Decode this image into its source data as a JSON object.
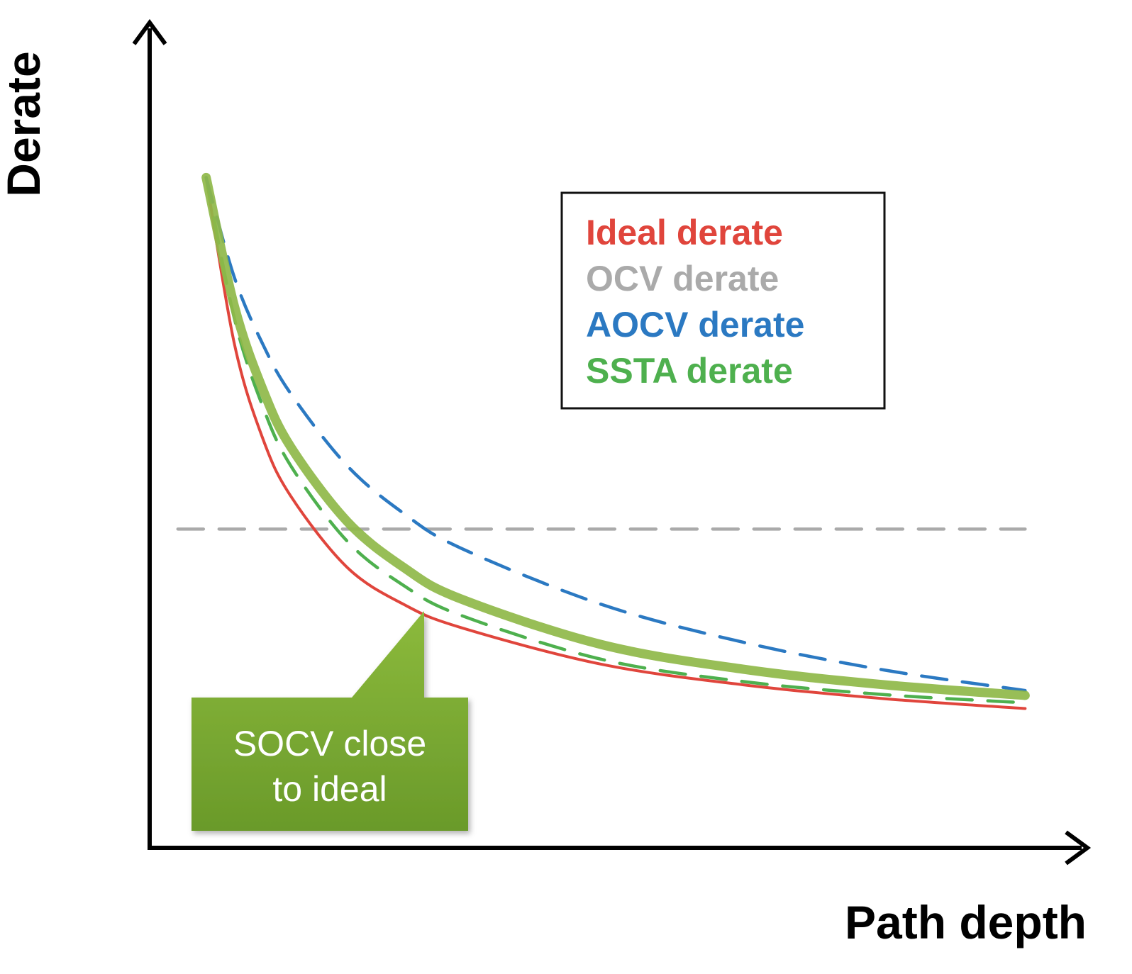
{
  "chart_data": {
    "type": "line",
    "xlabel": "Path depth",
    "ylabel": "Derate",
    "grid": false,
    "legend_position": "top-right",
    "series": [
      {
        "name": "Ideal derate",
        "style": "solid",
        "color": "#e0453c",
        "x": [
          1,
          2,
          3,
          4,
          6,
          8,
          10,
          15,
          20,
          25,
          30
        ],
        "y": [
          8.18,
          6.15,
          5.0,
          4.29,
          3.42,
          2.97,
          2.69,
          2.24,
          1.99,
          1.82,
          1.7
        ]
      },
      {
        "name": "OCV derate",
        "style": "dashed",
        "color": "#aaaaaa",
        "x": [
          0,
          30
        ],
        "y": [
          3.89,
          3.89
        ]
      },
      {
        "name": "AOCV derate",
        "style": "dashed",
        "color": "#2b79c2",
        "x": [
          1,
          2,
          3,
          4,
          6,
          8,
          10,
          15,
          20,
          25,
          30
        ],
        "y": [
          8.18,
          6.96,
          6.15,
          5.54,
          4.66,
          4.08,
          3.66,
          2.97,
          2.51,
          2.17,
          1.92
        ]
      },
      {
        "name": "SSTA derate",
        "style": "dashed",
        "color": "#4eb04e",
        "x": [
          1,
          2,
          3,
          4,
          6,
          8,
          10,
          15,
          20,
          25,
          30
        ],
        "y": [
          8.18,
          6.46,
          5.39,
          4.66,
          3.74,
          3.2,
          2.84,
          2.3,
          2.03,
          1.87,
          1.77
        ]
      },
      {
        "name": "SOCV",
        "style": "solid-thick",
        "color": "#8fb849",
        "x": [
          1,
          2,
          3,
          4,
          6,
          8,
          10,
          15,
          20,
          25,
          30
        ],
        "y": [
          8.18,
          6.61,
          5.6,
          4.89,
          3.98,
          3.42,
          3.04,
          2.48,
          2.18,
          1.99,
          1.86
        ]
      }
    ],
    "xlim": [
      -1,
      32
    ],
    "ylim": [
      0,
      10
    ],
    "annotations": [
      {
        "text": "SOCV close to ideal",
        "lines": [
          "SOCV close",
          "to ideal"
        ],
        "color": "#7aa832",
        "points_to_x": 6,
        "points_to_series": "Ideal derate"
      }
    ]
  }
}
